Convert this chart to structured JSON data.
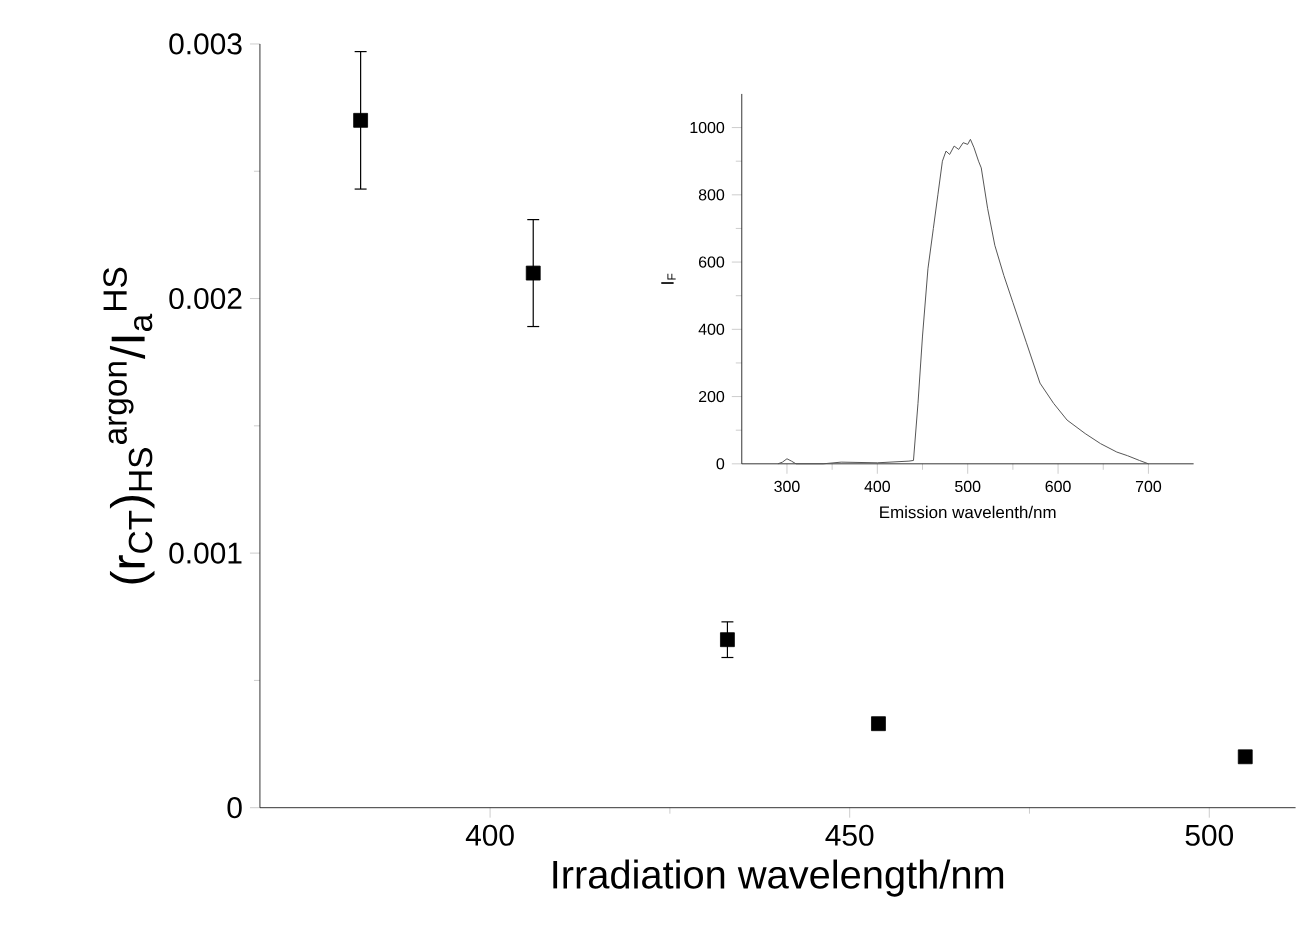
{
  "chart_data": [
    {
      "type": "scatter",
      "xlabel": "Irradiation wavelength/nm",
      "ylabel": "(r$_{CT}$)$_{HS}$$^{argon}$/I$_{a}$$^{HS}$",
      "x": [
        382,
        406,
        433,
        454,
        505
      ],
      "values": [
        0.0027,
        0.0021,
        0.00066,
        0.00033,
        0.0002
      ],
      "errors": [
        [
          0.00243,
          0.00297
        ],
        [
          0.00189,
          0.00231
        ],
        [
          0.00059,
          0.00073
        ],
        null,
        null
      ],
      "color": "#000000",
      "marker": "square",
      "xlim": [
        368,
        512
      ],
      "ylim": [
        0,
        0.003
      ],
      "xticks": [
        400,
        450,
        500
      ],
      "yticks": [
        0,
        0.001,
        0.002,
        0.003
      ]
    },
    {
      "type": "line",
      "xlabel": "Emission wavelenth/nm",
      "ylabel": "I$_{F}$",
      "color": "#555555",
      "marker": "none",
      "x": [
        290,
        295,
        300,
        305,
        310,
        340,
        360,
        400,
        435,
        440,
        445,
        450,
        456,
        462,
        467,
        472,
        476,
        480,
        485,
        490,
        495,
        500,
        503,
        507,
        512,
        515,
        522,
        530,
        540,
        550,
        565,
        580,
        595,
        610,
        630,
        647,
        665,
        677,
        690,
        700
      ],
      "values": [
        0,
        5,
        15,
        8,
        0,
        0,
        5,
        3,
        8,
        10,
        180,
        380,
        580,
        700,
        800,
        900,
        930,
        920,
        945,
        935,
        955,
        950,
        965,
        940,
        900,
        880,
        760,
        650,
        560,
        480,
        360,
        240,
        180,
        130,
        90,
        60,
        35,
        24,
        10,
        0
      ],
      "xlim": [
        250,
        750
      ],
      "ylim": [
        0,
        1100
      ],
      "xticks": [
        300,
        400,
        500,
        600,
        700
      ],
      "yticks": [
        0,
        200,
        400,
        600,
        800,
        1000
      ]
    }
  ]
}
